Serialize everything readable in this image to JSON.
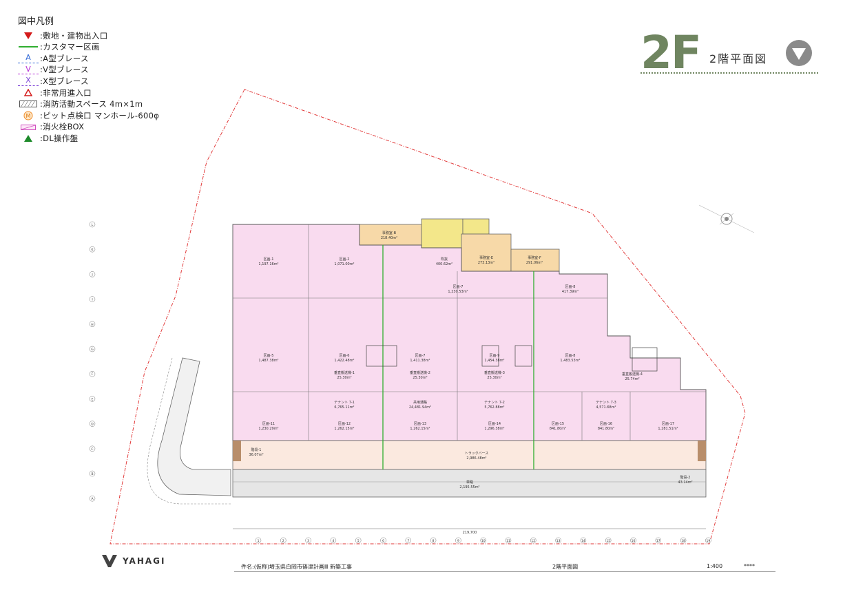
{
  "legend": {
    "title": "図中凡例",
    "items": [
      {
        "label": ":敷地・建物出入口",
        "icon": "red-down-triangle-icon"
      },
      {
        "label": ":カスタマー区画",
        "icon": "green-line-icon"
      },
      {
        "label": ":A型ブレース",
        "icon": "a-brace-icon",
        "mark": "A"
      },
      {
        "label": ":V型ブレース",
        "icon": "v-brace-icon",
        "mark": "V"
      },
      {
        "label": ":X型ブレース",
        "icon": "x-brace-icon",
        "mark": "X"
      },
      {
        "label": ":非常用進入口",
        "icon": "red-outline-triangle-icon"
      },
      {
        "label": ":消防活動スペース 4m×1m",
        "icon": "hatched-rect-icon"
      },
      {
        "label": ":ピット点検口 マンホール-600φ",
        "icon": "manhole-icon",
        "mark": "M"
      },
      {
        "label": ":消火栓BOX",
        "icon": "hydrant-box-icon"
      },
      {
        "label": ":DL操作盤",
        "icon": "green-triangle-icon"
      }
    ]
  },
  "title": {
    "floor": "2F",
    "subtitle": "2階平面図"
  },
  "rooms": {
    "r1": {
      "name": "区画-1",
      "area": "1,197.16m²"
    },
    "r2": {
      "name": "区画-2",
      "area": "1,071.00m²"
    },
    "office_b": {
      "name": "事務室-B",
      "area": "218.40m²"
    },
    "office_e": {
      "name": "事務室-E",
      "area": "273.13m²"
    },
    "office_f": {
      "name": "事務室-F",
      "area": "291.06m²"
    },
    "shaft": {
      "name": "吹抜",
      "area": "400.62m²"
    },
    "r7": {
      "name": "区画-7",
      "area": "1,230.53m²"
    },
    "r8": {
      "name": "区画-8",
      "area": "417.39m²"
    },
    "r5": {
      "name": "区画-5",
      "area": "1,487.38m²"
    },
    "r6": {
      "name": "区画-6",
      "area": "1,422.48m²"
    },
    "r7b": {
      "name": "区画-7",
      "area": "1,411.38m²"
    },
    "r9": {
      "name": "区画-9",
      "area": "1,454.38m²"
    },
    "r10": {
      "name": "区画-8",
      "area": "1,483.53m²"
    },
    "r11": {
      "name": "区画-11",
      "area": "1,230.29m²"
    },
    "r12": {
      "name": "区画-12",
      "area": "1,262.15m²"
    },
    "r13": {
      "name": "区画-13",
      "area": "1,262.15m²"
    },
    "r14": {
      "name": "区画-14",
      "area": "1,296.38m²"
    },
    "r15": {
      "name": "区画-15",
      "area": "841.80m²"
    },
    "r16": {
      "name": "区画-16",
      "area": "841.80m²"
    },
    "r17": {
      "name": "区画-17",
      "area": "1,281.51m²"
    },
    "tenant1": {
      "name": "テナント 7-1",
      "area": "6,765.11m²"
    },
    "common": {
      "name": "共用通路",
      "area": "24,481.94m²"
    },
    "tenant2": {
      "name": "テナント 7-2",
      "area": "5,762.88m²"
    },
    "tenant3": {
      "name": "テナント 7-3",
      "area": "4,571.68m²"
    },
    "truck": {
      "name": "トラックバース",
      "area": "2,986.48m²"
    },
    "ramp": {
      "name": "車路",
      "area": "2,195.55m²"
    },
    "stair1": {
      "name": "階段-1",
      "area": "36.07m²"
    },
    "stair2": {
      "name": "階段-2",
      "area": "43.14m²"
    },
    "ev1": {
      "name": "垂直搬送機-1",
      "area": "25.30m²"
    },
    "ev2": {
      "name": "垂直搬送機-2",
      "area": "25.30m²"
    },
    "ev3": {
      "name": "垂直搬送機-3",
      "area": "25.30m²"
    },
    "ev4": {
      "name": "垂直搬送機-4",
      "area": "25.74m²"
    }
  },
  "column_labels": [
    "1",
    "2",
    "3",
    "4",
    "5",
    "6",
    "7",
    "8",
    "9",
    "10",
    "11",
    "12",
    "13",
    "14",
    "15",
    "16",
    "17",
    "18",
    "19"
  ],
  "row_labels": [
    "L",
    "K",
    "J",
    "I",
    "H",
    "G",
    "F",
    "E",
    "D",
    "C",
    "B",
    "A"
  ],
  "dimension_total": "219,700",
  "footer": {
    "company": "YAHAGI",
    "project": "件名:(仮称)埼玉県白岡市篠津計画Ⅲ 新築工事",
    "drawing": "2階平面図",
    "scale": "1:400",
    "number": "****"
  },
  "colors": {
    "warehouse": "#f9dbef",
    "office": "#f7d9a8",
    "core": "#f3e78a",
    "truck": "#fbe9df",
    "ramp": "#e8e8e8",
    "boundary": "#e23a3a",
    "customer_line": "#3cb33c",
    "brand": "#6f8560"
  }
}
